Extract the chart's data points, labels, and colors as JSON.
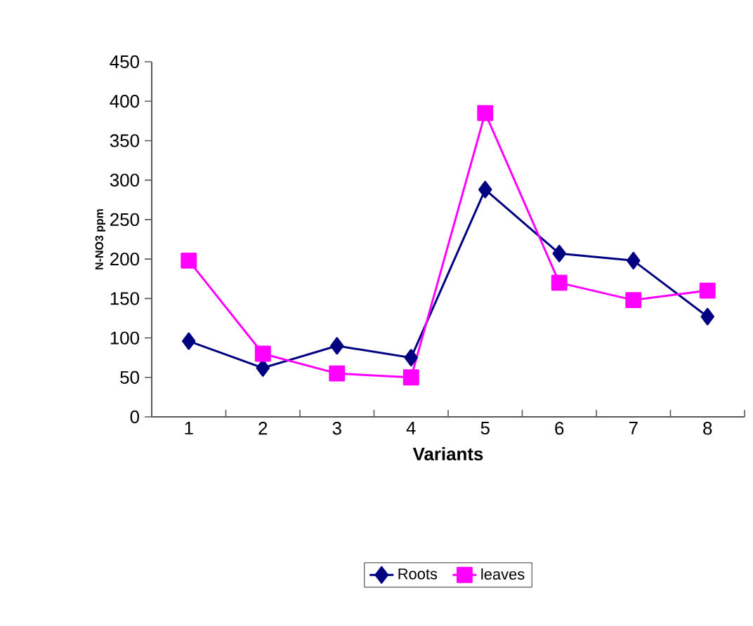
{
  "chart_data": {
    "type": "line",
    "xlabel": "Variants",
    "ylabel": "N-NO3 ppm",
    "categories": [
      "1",
      "2",
      "3",
      "4",
      "5",
      "6",
      "7",
      "8"
    ],
    "series": [
      {
        "name": "Roots",
        "color": "#000080",
        "marker": "diamond",
        "values": [
          96,
          62,
          90,
          75,
          288,
          207,
          198,
          127
        ]
      },
      {
        "name": "leaves",
        "color": "#ff00ff",
        "marker": "square",
        "values": [
          198,
          80,
          55,
          50,
          385,
          170,
          148,
          160
        ]
      }
    ],
    "ylim": [
      0,
      450
    ],
    "yticks": [
      0,
      50,
      100,
      150,
      200,
      250,
      300,
      350,
      400,
      450
    ],
    "legend": "bottom",
    "grid": false,
    "line_style": "solid"
  }
}
